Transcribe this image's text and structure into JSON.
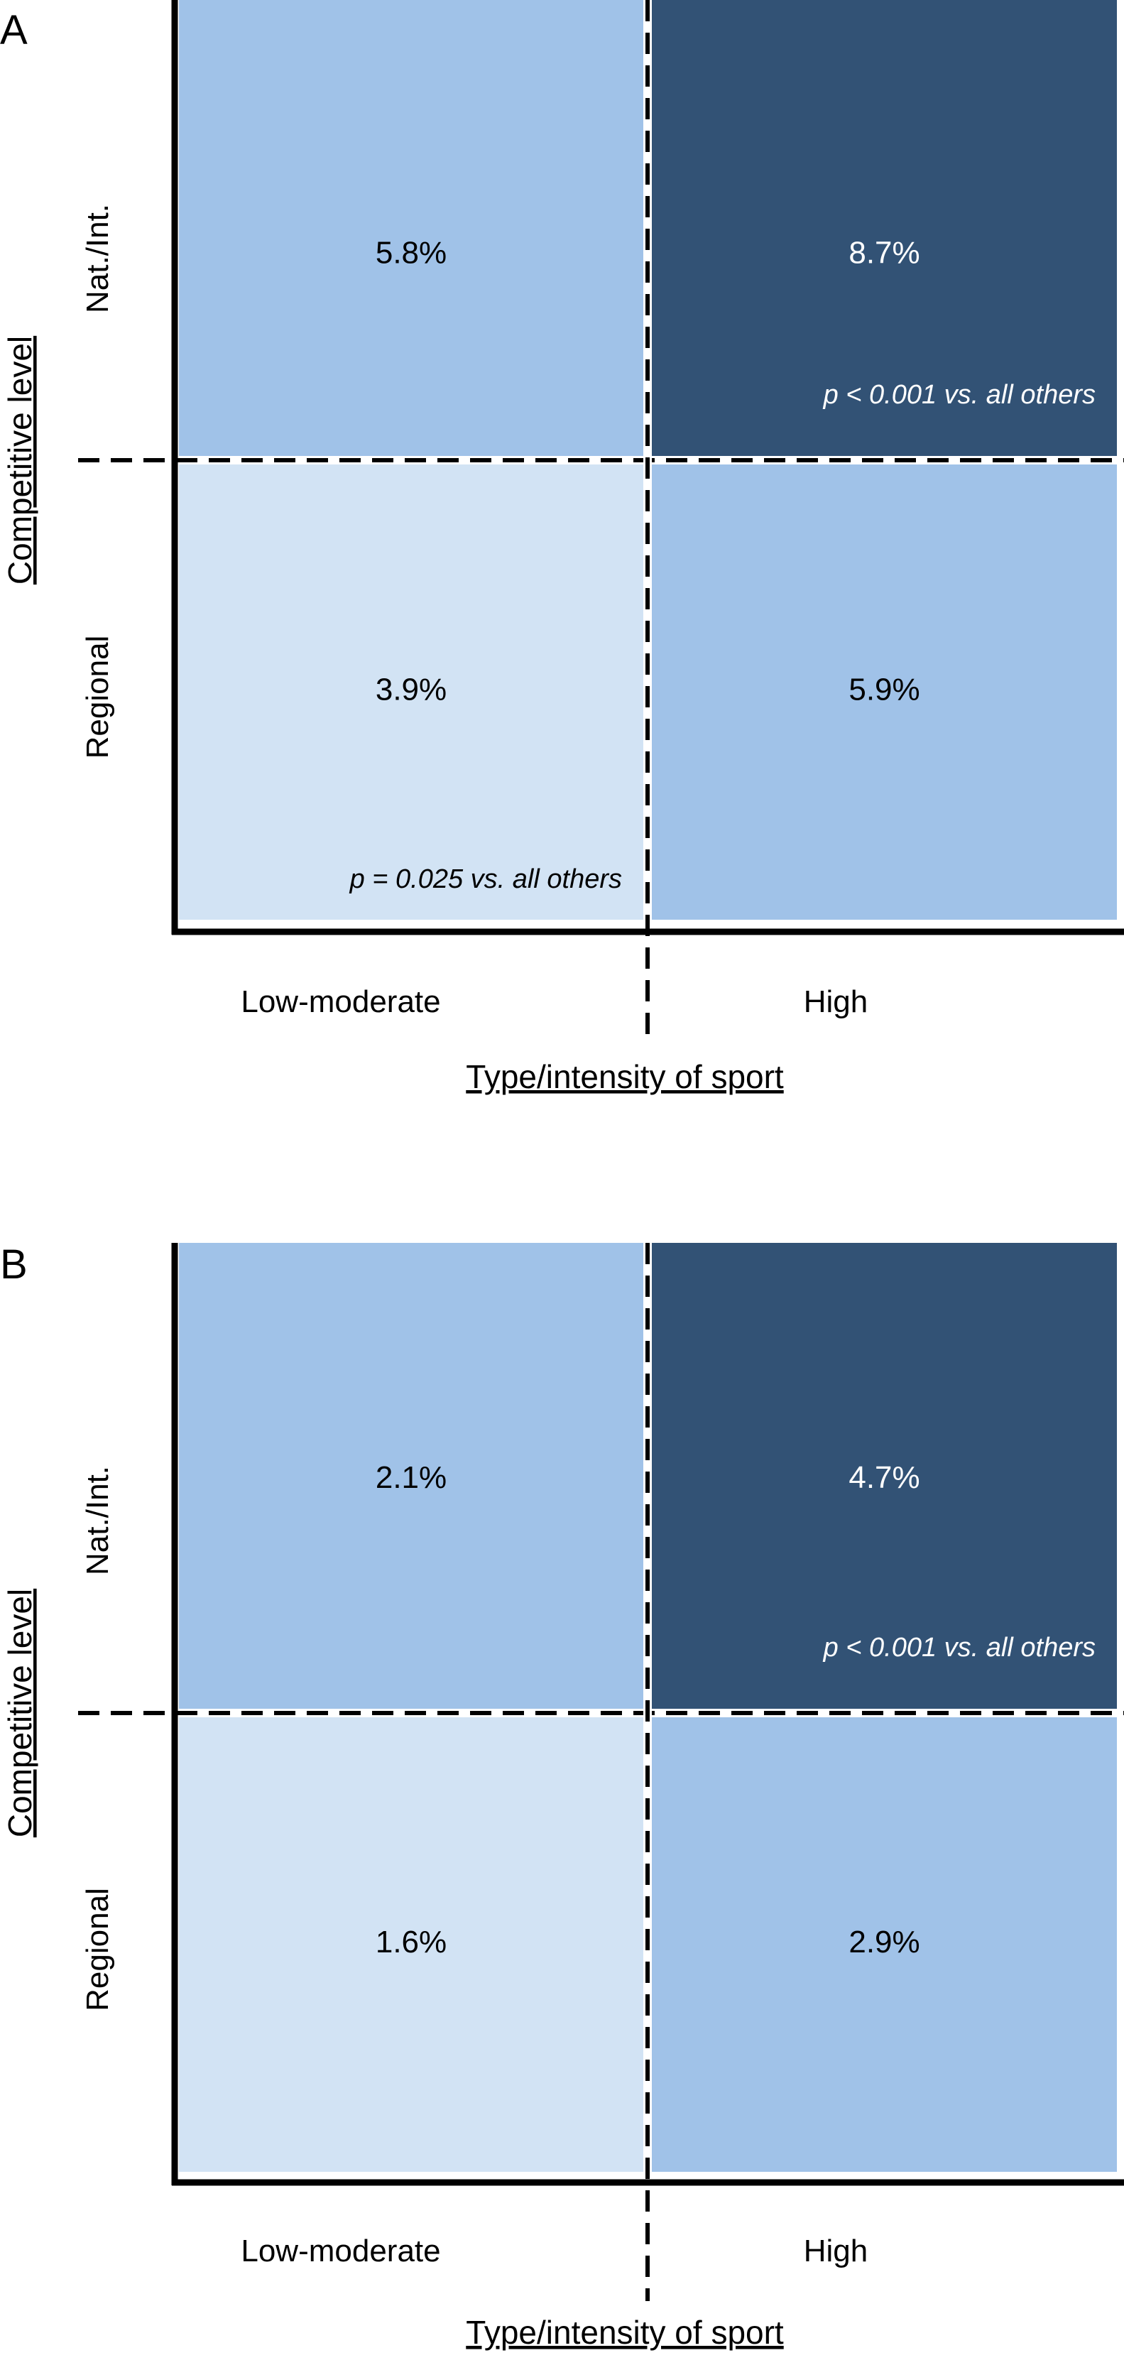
{
  "chart_data": [
    {
      "panel_label": "A",
      "type": "heatmap",
      "ylabel": "Competitive level",
      "xlabel": "Type/intensity of sport",
      "x_categories": [
        "Low-moderate",
        "High"
      ],
      "y_categories": [
        "Nat./Int.",
        "Regional"
      ],
      "cells": [
        {
          "row": "Nat./Int.",
          "col": "Low-moderate",
          "value": 5.8,
          "label": "5.8%",
          "color": "#a0c2e8",
          "text_color": "#000000",
          "note": ""
        },
        {
          "row": "Nat./Int.",
          "col": "High",
          "value": 8.7,
          "label": "8.7%",
          "color": "#325275",
          "text_color": "#ffffff",
          "note": "p < 0.001 vs. all others"
        },
        {
          "row": "Regional",
          "col": "Low-moderate",
          "value": 3.9,
          "label": "3.9%",
          "color": "#d2e3f4",
          "text_color": "#000000",
          "note": "p = 0.025 vs.  all others"
        },
        {
          "row": "Regional",
          "col": "High",
          "value": 5.9,
          "label": "5.9%",
          "color": "#a0c2e8",
          "text_color": "#000000",
          "note": ""
        }
      ]
    },
    {
      "panel_label": "B",
      "type": "heatmap",
      "ylabel": "Competitive level",
      "xlabel": "Type/intensity of sport",
      "x_categories": [
        "Low-moderate",
        "High"
      ],
      "y_categories": [
        "Nat./Int.",
        "Regional"
      ],
      "cells": [
        {
          "row": "Nat./Int.",
          "col": "Low-moderate",
          "value": 2.1,
          "label": "2.1%",
          "color": "#a0c2e8",
          "text_color": "#000000",
          "note": ""
        },
        {
          "row": "Nat./Int.",
          "col": "High",
          "value": 4.7,
          "label": "4.7%",
          "color": "#325275",
          "text_color": "#ffffff",
          "note": "p < 0.001 vs. all others"
        },
        {
          "row": "Regional",
          "col": "Low-moderate",
          "value": 1.6,
          "label": "1.6%",
          "color": "#d2e3f4",
          "text_color": "#000000",
          "note": ""
        },
        {
          "row": "Regional",
          "col": "High",
          "value": 2.9,
          "label": "2.9%",
          "color": "#a0c2e8",
          "text_color": "#000000",
          "note": ""
        }
      ]
    }
  ]
}
